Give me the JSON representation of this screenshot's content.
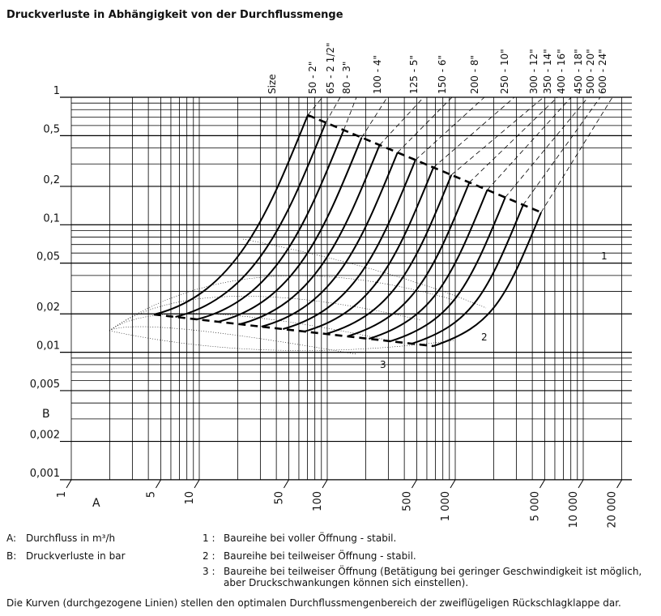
{
  "title": "Druckverluste in Abhängigkeit von der Durchflussmenge",
  "x_axis": {
    "label": "A",
    "ticks": [
      1,
      5,
      10,
      50,
      100,
      500,
      {
        "value": 1000,
        "label": "1 000"
      },
      {
        "value": 5000,
        "label": "5 000"
      },
      {
        "value": 10000,
        "label": "10 000"
      },
      {
        "value": 20000,
        "label": "20 000"
      }
    ]
  },
  "y_axis": {
    "label": "B",
    "ticks": [
      1,
      {
        "value": 0.5,
        "label": "0,5"
      },
      {
        "value": 0.2,
        "label": "0,2"
      },
      {
        "value": 0.1,
        "label": "0,1"
      },
      {
        "value": 0.05,
        "label": "0,05"
      },
      {
        "value": 0.02,
        "label": "0,02"
      },
      {
        "value": 0.01,
        "label": "0,01"
      },
      {
        "value": 0.005,
        "label": "0,005"
      },
      {
        "value": 0.002,
        "label": "0,002"
      },
      {
        "value": 0.001,
        "label": "0,001"
      }
    ]
  },
  "sizes": {
    "header": "Size",
    "items": [
      "50 - 2\"",
      "65 - 2 1/2\"",
      "80 - 3\"",
      "100 - 4\"",
      "125 - 5\"",
      "150 - 6\"",
      "200 - 8\"",
      "250 - 10\"",
      "300 - 12\"",
      "350 - 14\"",
      "400 - 16\"",
      "450 - 18\"",
      "500 - 20\"",
      "600 - 24\""
    ]
  },
  "curve_labels": [
    "1",
    "2",
    "3"
  ],
  "legend": [
    {
      "key": "A:",
      "text": "Durchfluss in m³/h"
    },
    {
      "key": "B:",
      "text": "Druckverluste in bar"
    }
  ],
  "notes": [
    {
      "key": "1 :",
      "lines": [
        "Baureihe bei voller Öffnung - stabil."
      ]
    },
    {
      "key": "2 :",
      "lines": [
        "Baureihe bei teilweiser Öffnung - stabil."
      ]
    },
    {
      "key": "3 :",
      "lines": [
        "Baureihe bei teilweiser Öffnung (Betätigung bei geringer Geschwindigkeit ist möglich,",
        "aber Druckschwankungen können sich einstellen)."
      ]
    }
  ],
  "footnote": "Die Kurven (durchgezogene Linien) stellen den optimalen Durchflussmengenbereich der zweiflügeligen Rückschlagklappe dar."
}
